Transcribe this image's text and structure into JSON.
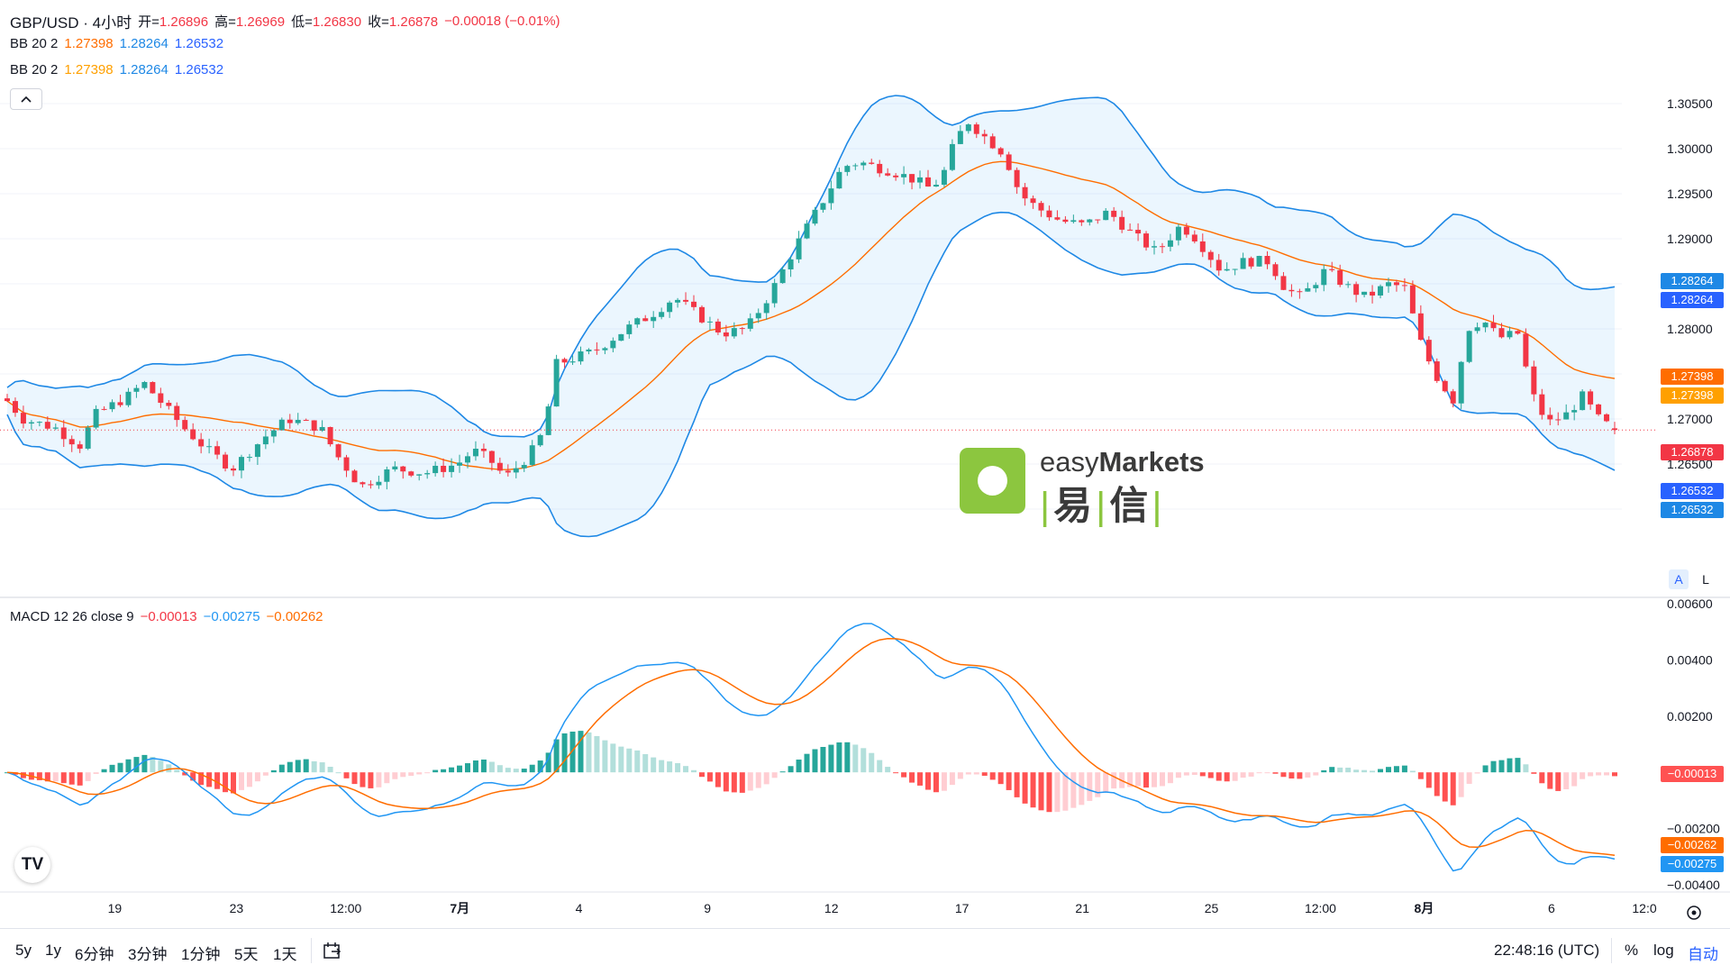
{
  "header": {
    "symbol": "GBP/USD · 4小时",
    "ohlc_open_label": "开=",
    "ohlc_open": "1.26896",
    "ohlc_high_label": "高=",
    "ohlc_high": "1.26969",
    "ohlc_low_label": "低=",
    "ohlc_low": "1.26830",
    "ohlc_close_label": "收=",
    "ohlc_close": "1.26878",
    "change": "−0.00018 (−0.01%)"
  },
  "indicators": [
    {
      "label": "BB 20 2",
      "basis": "1.27398",
      "upper": "1.28264",
      "lower": "1.26532"
    },
    {
      "label": "BB 20 2",
      "basis": "1.27398",
      "upper": "1.28264",
      "lower": "1.26532"
    }
  ],
  "collapse_icon": "chevron-up-icon",
  "macd_legend": {
    "label": "MACD 12 26 close 9",
    "hist": "−0.00013",
    "macd": "−0.00275",
    "signal": "−0.00262"
  },
  "price_tags": {
    "upper1": "1.28264",
    "upper2": "1.28264",
    "basis1": "1.27398",
    "basis2": "1.27398",
    "close": "1.26878",
    "lower1": "1.26532",
    "lower2": "1.26532"
  },
  "macd_tags": {
    "hist": "−0.00013",
    "signal": "−0.00262",
    "macd": "−0.00275"
  },
  "scale_buttons": {
    "auto": "A",
    "log": "L"
  },
  "watermark": {
    "latin_light": "easy",
    "latin_bold": "Markets",
    "cn_1": "易",
    "cn_2": "信"
  },
  "tv_logo": "TV",
  "bottom_bar": {
    "ranges": [
      "5y",
      "1y",
      "6分钟",
      "3分钟",
      "1分钟",
      "5天",
      "1天"
    ],
    "goto_icon": "goto-date-icon",
    "time": "22:48:16 (UTC)",
    "percent": "%",
    "log": "log",
    "auto": "自动"
  },
  "colors": {
    "up": "#26A69A",
    "down": "#F23645",
    "band": "#1E88E5",
    "basis": "#FF6D00",
    "macd": "#2196F3",
    "signal": "#FF6D00",
    "hist_up_strong": "#26A69A",
    "hist_up_weak": "#B2DFDB",
    "hist_down_strong": "#FF5252",
    "hist_down_weak": "#FFCDD2"
  },
  "chart_data": {
    "type": "candlestick",
    "price_axis": {
      "ticks": [
        "1.30500",
        "1.30000",
        "1.29500",
        "1.29000",
        "1.28500",
        "1.28000",
        "1.27500",
        "1.27000",
        "1.26500",
        "1.26000"
      ],
      "range": [
        1.2555,
        1.3105
      ]
    },
    "macd_axis": {
      "ticks": [
        "0.00600",
        "0.00400",
        "0.00200",
        "−0.00200",
        "−0.00400"
      ],
      "range": [
        -0.0041,
        0.0061
      ]
    },
    "x_ticks": [
      "19",
      "23",
      "12:00",
      "7月",
      "4",
      "9",
      "12",
      "17",
      "21",
      "25",
      "12:00",
      "8月",
      "6",
      "12:0"
    ],
    "x_tick_fracs": [
      0.0698,
      0.1438,
      0.2103,
      0.2796,
      0.3521,
      0.4302,
      0.5056,
      0.585,
      0.6582,
      0.7367,
      0.803,
      0.866,
      0.9435,
      1.0
    ],
    "price_anchors": [
      [
        0.0,
        1.272
      ],
      [
        0.01,
        1.27
      ],
      [
        0.03,
        1.269
      ],
      [
        0.045,
        1.267
      ],
      [
        0.055,
        1.2705
      ],
      [
        0.075,
        1.2725
      ],
      [
        0.085,
        1.274
      ],
      [
        0.095,
        1.272
      ],
      [
        0.11,
        1.269
      ],
      [
        0.125,
        1.2665
      ],
      [
        0.14,
        1.2645
      ],
      [
        0.16,
        1.268
      ],
      [
        0.175,
        1.27
      ],
      [
        0.195,
        1.269
      ],
      [
        0.205,
        1.266
      ],
      [
        0.22,
        1.2625
      ],
      [
        0.24,
        1.2645
      ],
      [
        0.26,
        1.264
      ],
      [
        0.28,
        1.265
      ],
      [
        0.29,
        1.2665
      ],
      [
        0.3,
        1.2655
      ],
      [
        0.31,
        1.2635
      ],
      [
        0.325,
        1.266
      ],
      [
        0.335,
        1.269
      ],
      [
        0.34,
        1.276
      ],
      [
        0.365,
        1.2775
      ],
      [
        0.385,
        1.28
      ],
      [
        0.4,
        1.2815
      ],
      [
        0.415,
        1.2835
      ],
      [
        0.43,
        1.2815
      ],
      [
        0.445,
        1.2795
      ],
      [
        0.46,
        1.28
      ],
      [
        0.475,
        1.284
      ],
      [
        0.49,
        1.289
      ],
      [
        0.5,
        1.292
      ],
      [
        0.51,
        1.295
      ],
      [
        0.52,
        1.298
      ],
      [
        0.53,
        1.2985
      ],
      [
        0.55,
        1.2975
      ],
      [
        0.565,
        1.2965
      ],
      [
        0.575,
        1.2955
      ],
      [
        0.583,
        1.2975
      ],
      [
        0.59,
        1.301
      ],
      [
        0.598,
        1.303
      ],
      [
        0.61,
        1.301
      ],
      [
        0.62,
        1.2995
      ],
      [
        0.63,
        1.295
      ],
      [
        0.64,
        1.2935
      ],
      [
        0.655,
        1.292
      ],
      [
        0.67,
        1.2915
      ],
      [
        0.685,
        1.293
      ],
      [
        0.7,
        1.2905
      ],
      [
        0.715,
        1.2885
      ],
      [
        0.73,
        1.2915
      ],
      [
        0.74,
        1.29
      ],
      [
        0.755,
        1.2865
      ],
      [
        0.77,
        1.2875
      ],
      [
        0.785,
        1.2875
      ],
      [
        0.795,
        1.2845
      ],
      [
        0.805,
        1.2835
      ],
      [
        0.82,
        1.2865
      ],
      [
        0.835,
        1.2845
      ],
      [
        0.845,
        1.2835
      ],
      [
        0.86,
        1.285
      ],
      [
        0.87,
        1.2845
      ],
      [
        0.878,
        1.279
      ],
      [
        0.888,
        1.275
      ],
      [
        0.9,
        1.272
      ],
      [
        0.908,
        1.28
      ],
      [
        0.918,
        1.281
      ],
      [
        0.928,
        1.279
      ],
      [
        0.94,
        1.2795
      ],
      [
        0.948,
        1.273
      ],
      [
        0.958,
        1.2695
      ],
      [
        0.97,
        1.2705
      ],
      [
        0.98,
        1.2725
      ],
      [
        0.99,
        1.27
      ],
      [
        1.0,
        1.26878
      ]
    ]
  }
}
